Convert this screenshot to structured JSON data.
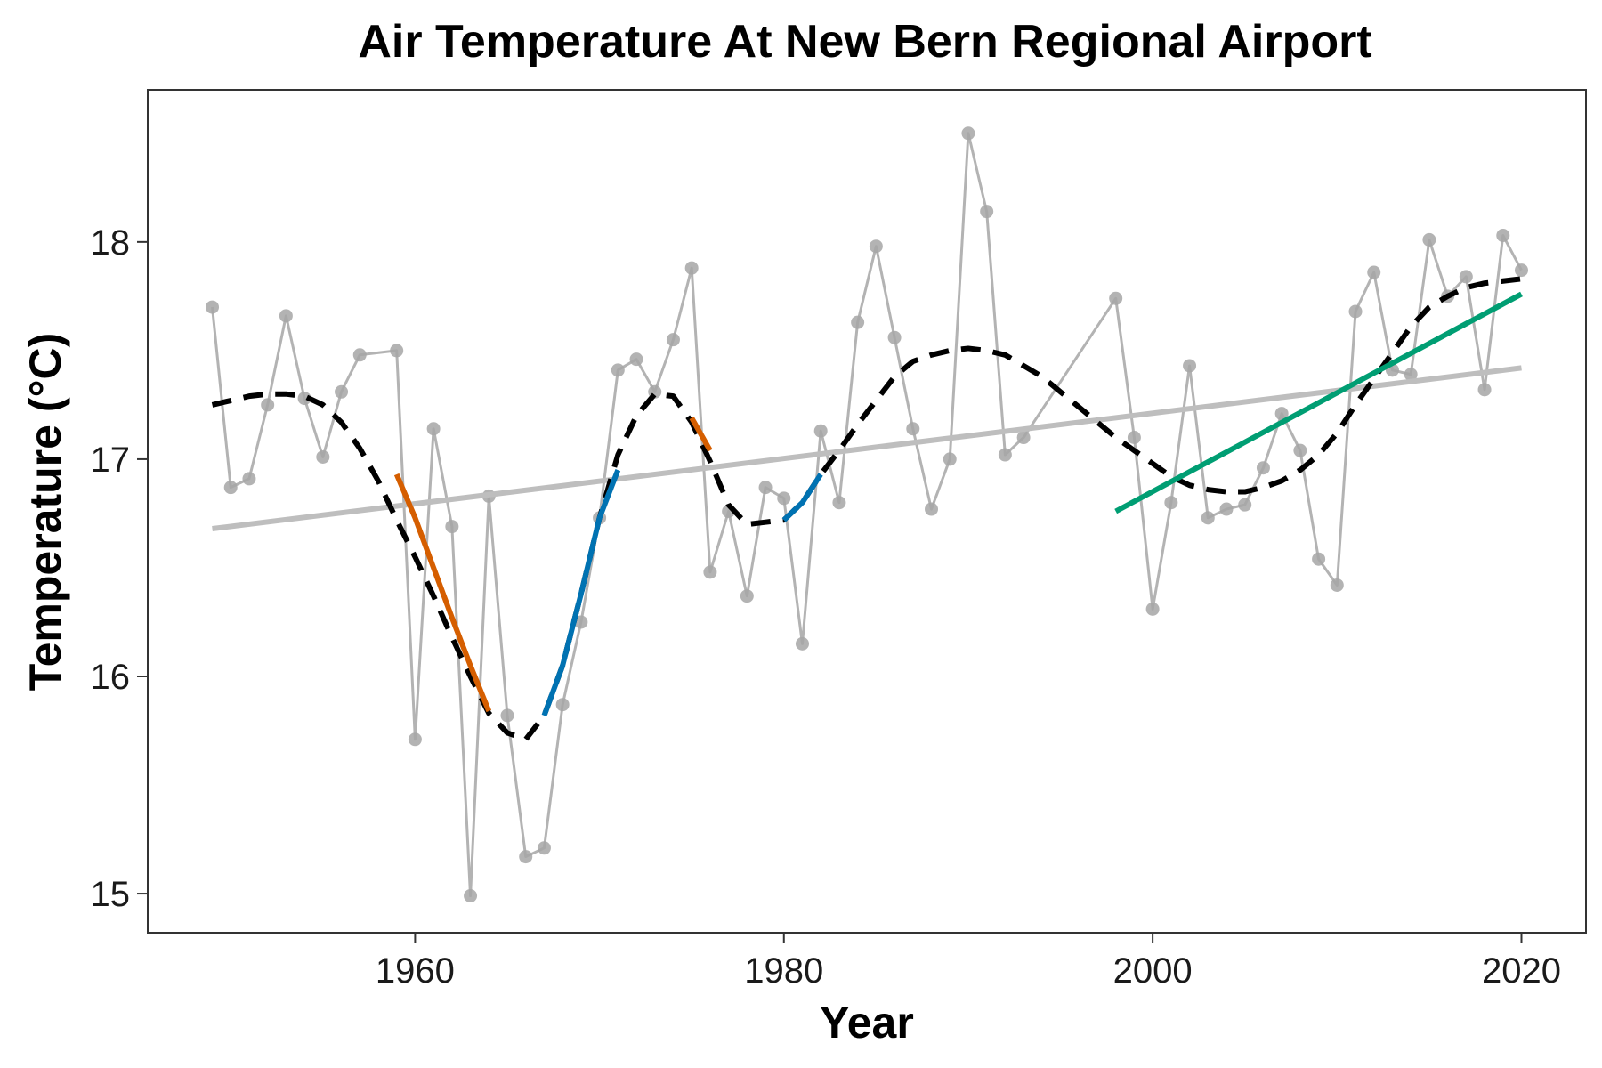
{
  "chart_data": {
    "type": "line",
    "title": "Air Temperature At New Bern Regional Airport",
    "xlabel": "Year",
    "ylabel": "Temperature (°C)",
    "xlim": [
      1945.5,
      2023.5
    ],
    "ylim": [
      14.82,
      18.7
    ],
    "xticks": [
      1960,
      1980,
      2000,
      2020
    ],
    "xtick_labels": [
      "1960",
      "1980",
      "2000",
      "2020"
    ],
    "yticks": [
      15,
      16,
      17,
      18
    ],
    "ytick_labels": [
      "15",
      "16",
      "17",
      "18"
    ],
    "grid": false,
    "legend": "none",
    "series": [
      {
        "style": "line-with-points",
        "color": "#b3b3b3",
        "x": [
          1949,
          1950,
          1951,
          1952,
          1953,
          1954,
          1955,
          1956,
          1957,
          1959,
          1960,
          1961,
          1962,
          1963,
          1964,
          1965,
          1966,
          1967,
          1968,
          1969,
          1970,
          1971,
          1972,
          1973,
          1974,
          1975,
          1976,
          1977,
          1978,
          1979,
          1980,
          1981,
          1982,
          1983,
          1984,
          1985,
          1986,
          1987,
          1988,
          1989,
          1990,
          1991,
          1992,
          1993,
          1998,
          1999,
          2000,
          2001,
          2002,
          2003,
          2004,
          2005,
          2006,
          2007,
          2008,
          2009,
          2010,
          2011,
          2012,
          2013,
          2014,
          2015,
          2016,
          2017,
          2018,
          2019,
          2020
        ],
        "y": [
          17.7,
          16.87,
          16.91,
          17.25,
          17.66,
          17.28,
          17.01,
          17.31,
          17.48,
          17.5,
          15.71,
          17.14,
          16.69,
          14.99,
          16.83,
          15.82,
          15.17,
          15.21,
          15.87,
          16.25,
          16.73,
          17.41,
          17.46,
          17.31,
          17.55,
          17.88,
          16.48,
          16.76,
          16.37,
          16.87,
          16.82,
          16.15,
          17.13,
          16.8,
          17.63,
          17.98,
          17.56,
          17.14,
          16.77,
          17.0,
          18.5,
          18.14,
          17.02,
          17.1,
          17.74,
          17.1,
          16.31,
          16.8,
          17.43,
          16.73,
          16.77,
          16.79,
          16.96,
          17.21,
          17.04,
          16.54,
          16.42,
          17.68,
          17.86,
          17.41,
          17.39,
          18.01,
          17.75,
          17.84,
          17.32,
          18.03,
          17.87
        ]
      },
      {
        "style": "solid",
        "color": "#bebebe",
        "x": [
          1949,
          2020
        ],
        "y": [
          16.68,
          17.42
        ]
      },
      {
        "style": "dashed",
        "color": "#000000",
        "x": [
          1949,
          1950,
          1951,
          1952,
          1953,
          1954,
          1955,
          1956,
          1957,
          1958,
          1959,
          1960,
          1961,
          1962,
          1963,
          1964,
          1965,
          1966,
          1967,
          1968,
          1969,
          1970,
          1971,
          1972,
          1973,
          1974,
          1975,
          1976,
          1977,
          1978,
          1979,
          1980,
          1981,
          1982,
          1983,
          1984,
          1985,
          1986,
          1987,
          1988,
          1989,
          1990,
          1991,
          1992,
          1993,
          1994,
          1995,
          1996,
          1997,
          1998,
          1999,
          2000,
          2001,
          2002,
          2003,
          2004,
          2005,
          2006,
          2007,
          2008,
          2009,
          2010,
          2011,
          2012,
          2013,
          2014,
          2015,
          2016,
          2017,
          2018,
          2019,
          2020
        ],
        "y": [
          17.25,
          17.27,
          17.29,
          17.3,
          17.3,
          17.29,
          17.25,
          17.17,
          17.05,
          16.9,
          16.72,
          16.55,
          16.37,
          16.18,
          16.0,
          15.83,
          15.74,
          15.71,
          15.82,
          16.05,
          16.38,
          16.73,
          17.02,
          17.2,
          17.3,
          17.29,
          17.17,
          16.99,
          16.79,
          16.7,
          16.71,
          16.72,
          16.8,
          16.93,
          17.04,
          17.16,
          17.27,
          17.38,
          17.45,
          17.48,
          17.5,
          17.51,
          17.5,
          17.48,
          17.43,
          17.38,
          17.31,
          17.24,
          17.17,
          17.1,
          17.04,
          16.98,
          16.92,
          16.88,
          16.86,
          16.85,
          16.85,
          16.87,
          16.9,
          16.95,
          17.02,
          17.12,
          17.25,
          17.37,
          17.49,
          17.61,
          17.7,
          17.75,
          17.79,
          17.81,
          17.82,
          17.83
        ]
      },
      {
        "style": "solid",
        "color": "#d55e00",
        "x": [
          1959,
          1960,
          1961,
          1962,
          1963,
          1964
        ],
        "y": [
          16.93,
          16.73,
          16.5,
          16.27,
          16.05,
          15.84
        ]
      },
      {
        "style": "solid",
        "color": "#0072b2",
        "x": [
          1967,
          1968,
          1969,
          1970,
          1971
        ],
        "y": [
          15.82,
          16.05,
          16.38,
          16.73,
          16.95
        ]
      },
      {
        "style": "solid",
        "color": "#d55e00",
        "x": [
          1975,
          1976
        ],
        "y": [
          17.19,
          17.04
        ]
      },
      {
        "style": "solid",
        "color": "#0072b2",
        "x": [
          1980,
          1981,
          1982
        ],
        "y": [
          16.72,
          16.8,
          16.93
        ]
      },
      {
        "style": "solid",
        "color": "#009e73",
        "x": [
          1998,
          2020
        ],
        "y": [
          16.76,
          17.76
        ]
      }
    ]
  }
}
